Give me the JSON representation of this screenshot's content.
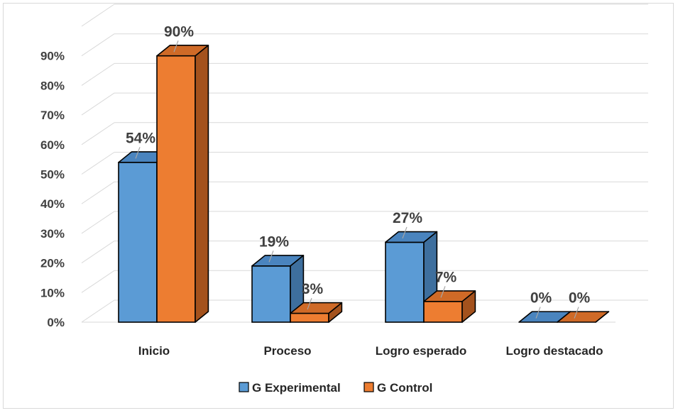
{
  "chart_data": {
    "type": "bar",
    "style": "3d-clustered-column",
    "categories": [
      "Inicio",
      "Proceso",
      "Logro esperado",
      "Logro destacado"
    ],
    "series": [
      {
        "name": "G Experimental",
        "values": [
          54,
          19,
          27,
          0
        ],
        "labels": [
          "54%",
          "19%",
          "27%",
          "0%"
        ],
        "color": "#5b9bd5",
        "side_color": "#3e6f9e",
        "top_color": "#4a84be"
      },
      {
        "name": "G Control",
        "values": [
          90,
          3,
          7,
          0
        ],
        "labels": [
          "90%",
          "3%",
          "7%",
          "0%"
        ],
        "color": "#ed7d31",
        "side_color": "#a4521d",
        "top_color": "#cf6a27"
      }
    ],
    "y_ticks": [
      "0%",
      "10%",
      "20%",
      "30%",
      "40%",
      "50%",
      "60%",
      "70%",
      "80%",
      "90%"
    ],
    "ylim": [
      0,
      90
    ],
    "grid": true,
    "legend_position": "bottom"
  }
}
